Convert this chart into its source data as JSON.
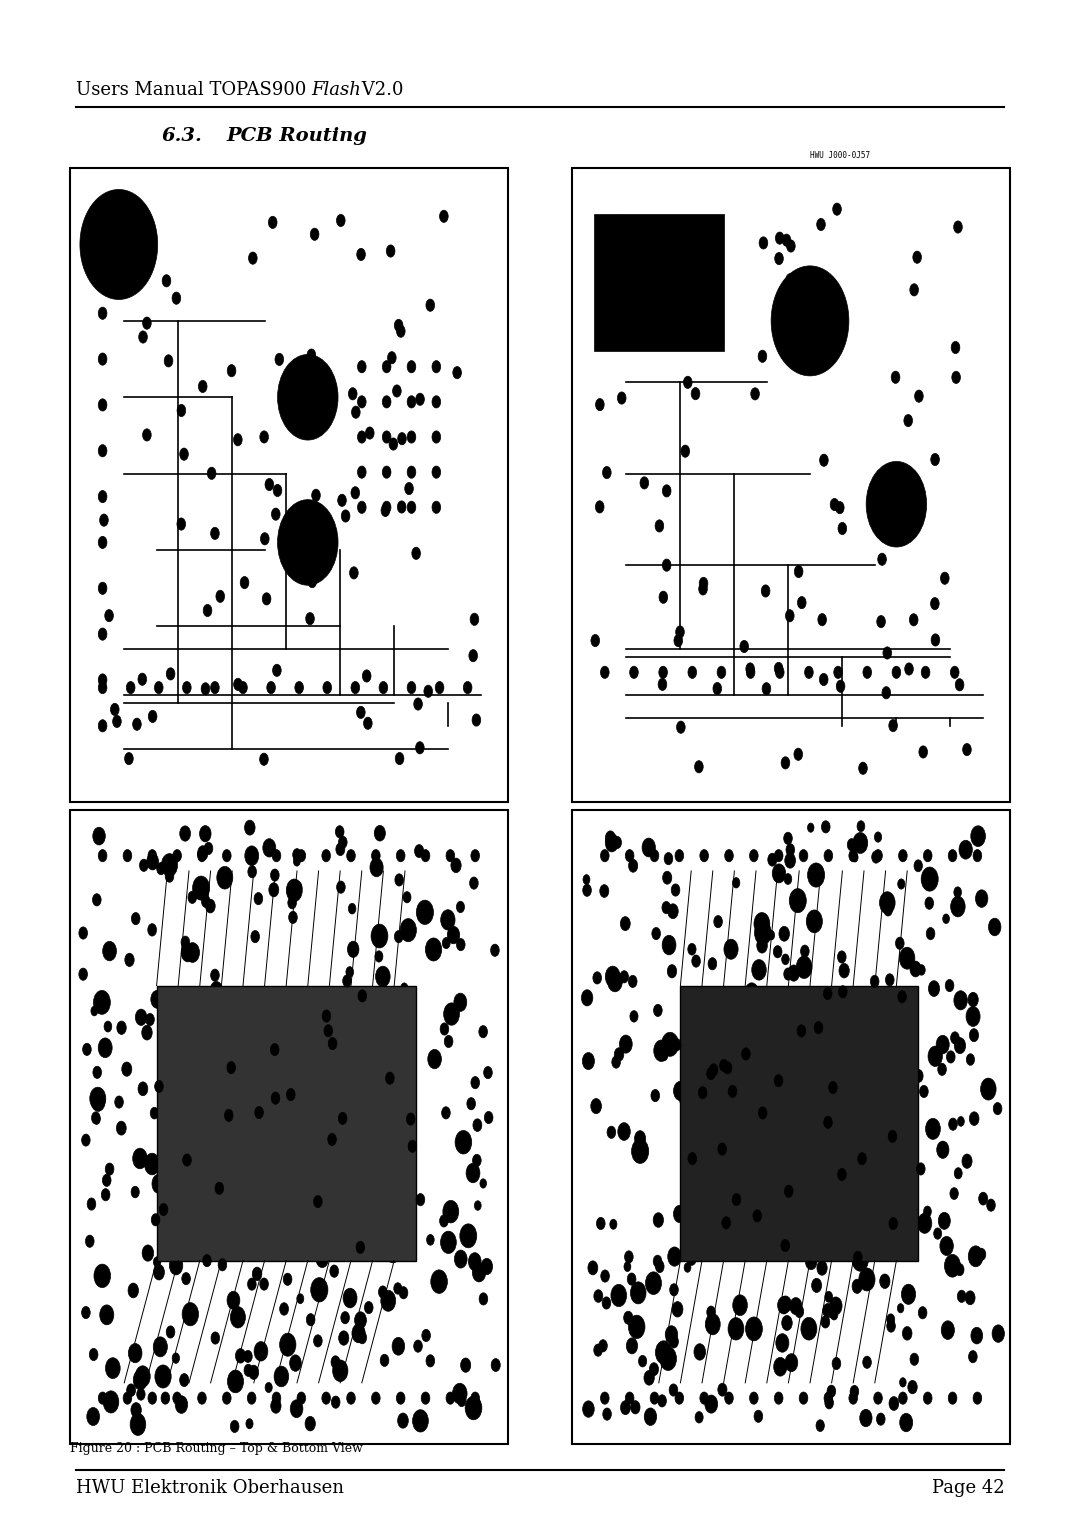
{
  "header_text": "Users Manual TOPAS900 ",
  "header_italic": "Flash",
  "header_suffix": " V2.0",
  "section_title": "6.3.",
  "section_subtitle": "PCB Routing",
  "figure_caption": "Figure 20 : PCB Routing – Top & Bottom View",
  "footer_left": "HWU Elektronik Oberhausen",
  "footer_right": "Page 42",
  "pcb_label": "HWU J000-0J57",
  "bg_color": "#ffffff",
  "text_color": "#000000",
  "line_color": "#000000",
  "border_color": "#000000",
  "header_fontsize": 13,
  "section_title_fontsize": 14,
  "caption_fontsize": 9,
  "footer_fontsize": 13,
  "page_width": 10.8,
  "page_height": 15.28
}
